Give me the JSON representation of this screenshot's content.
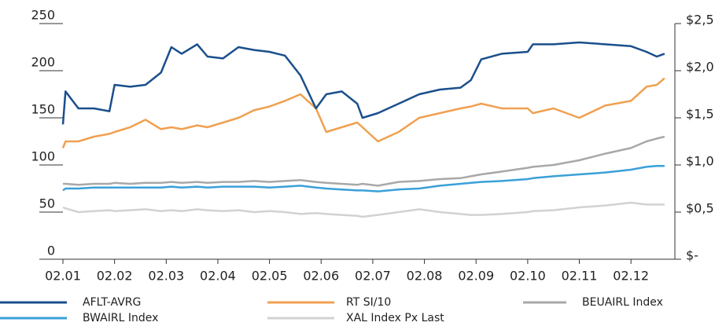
{
  "chart_data": {
    "type": "line",
    "x": [
      0,
      0.05,
      0.3,
      0.6,
      0.9,
      1.0,
      1.3,
      1.6,
      1.9,
      2.1,
      2.3,
      2.6,
      2.8,
      3.1,
      3.4,
      3.7,
      4.0,
      4.3,
      4.6,
      4.9,
      5.1,
      5.4,
      5.7,
      5.8,
      6.1,
      6.5,
      6.9,
      7.3,
      7.7,
      7.9,
      8.1,
      8.5,
      9.0,
      9.1,
      9.5,
      10.0,
      10.5,
      11.0,
      11.3,
      11.5,
      11.65
    ],
    "series": [
      {
        "name": "AFLT-AVRG",
        "color": "#1a4f8c",
        "values": [
          143,
          178,
          160,
          160,
          157,
          185,
          183,
          185,
          198,
          225,
          218,
          228,
          215,
          213,
          225,
          222,
          220,
          216,
          195,
          160,
          175,
          178,
          165,
          150,
          155,
          165,
          175,
          180,
          182,
          190,
          212,
          218,
          220,
          228,
          228,
          230,
          228,
          226,
          220,
          215,
          218
        ]
      },
      {
        "name": "RT SI/10",
        "color": "#f0a050",
        "values": [
          118,
          125,
          125,
          130,
          133,
          135,
          140,
          148,
          138,
          140,
          138,
          142,
          140,
          145,
          150,
          158,
          162,
          168,
          175,
          160,
          135,
          140,
          145,
          140,
          125,
          135,
          150,
          155,
          160,
          162,
          165,
          160,
          160,
          155,
          160,
          150,
          163,
          168,
          183,
          185,
          192
        ]
      },
      {
        "name": "BEUAIRL Index",
        "color": "#a8a8a8",
        "values": [
          80,
          80,
          79,
          80,
          80,
          81,
          80,
          81,
          81,
          82,
          81,
          82,
          81,
          82,
          82,
          83,
          82,
          83,
          84,
          82,
          81,
          80,
          79,
          80,
          78,
          82,
          83,
          85,
          86,
          88,
          90,
          93,
          97,
          98,
          100,
          105,
          112,
          118,
          125,
          128,
          130
        ]
      },
      {
        "name": "BWAIRL Index",
        "color": "#3aa0d8",
        "values": [
          73,
          75,
          75,
          76,
          76,
          76,
          76,
          76,
          76,
          77,
          76,
          77,
          76,
          77,
          77,
          77,
          76,
          77,
          78,
          76,
          75,
          74,
          73,
          73,
          72,
          74,
          75,
          78,
          80,
          81,
          82,
          83,
          85,
          86,
          88,
          90,
          92,
          95,
          98,
          99,
          99
        ]
      },
      {
        "name": "XAL Index Px Last",
        "color": "#d2d2d2",
        "values": [
          55,
          54,
          50,
          51,
          52,
          51,
          52,
          53,
          51,
          52,
          51,
          53,
          52,
          51,
          52,
          50,
          51,
          50,
          48,
          49,
          48,
          47,
          46,
          45,
          47,
          50,
          53,
          50,
          48,
          47,
          47,
          48,
          50,
          51,
          52,
          55,
          57,
          60,
          58,
          58,
          58
        ]
      }
    ],
    "xlim": [
      0,
      11.85
    ],
    "xticks": [
      {
        "value": 0,
        "label": "02.01"
      },
      {
        "value": 1,
        "label": "02.02"
      },
      {
        "value": 2,
        "label": "02.03"
      },
      {
        "value": 3,
        "label": "02.04"
      },
      {
        "value": 4,
        "label": "02.05"
      },
      {
        "value": 5,
        "label": "02.06"
      },
      {
        "value": 6,
        "label": "02.07"
      },
      {
        "value": 7,
        "label": "02.08"
      },
      {
        "value": 8,
        "label": "02.09"
      },
      {
        "value": 9,
        "label": "02.10"
      },
      {
        "value": 10,
        "label": "02.11"
      },
      {
        "value": 11,
        "label": "02.12"
      }
    ],
    "ylim": [
      0,
      250
    ],
    "yticks": [
      0,
      50,
      100,
      150,
      200,
      250
    ],
    "y2lim": [
      0,
      2.5
    ],
    "y2ticks": [
      {
        "value": 0,
        "label": "$-"
      },
      {
        "value": 0.5,
        "label": "$0,5"
      },
      {
        "value": 1.0,
        "label": "$1,0"
      },
      {
        "value": 1.5,
        "label": "$1,5"
      },
      {
        "value": 2.0,
        "label": "$2,0"
      },
      {
        "value": 2.5,
        "label": "$2,5"
      }
    ],
    "legend": "bottom"
  }
}
